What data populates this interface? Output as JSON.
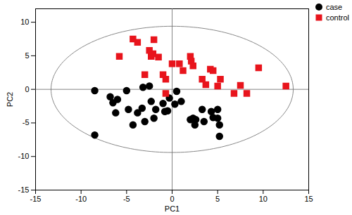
{
  "chart_data": {
    "type": "scatter",
    "x_label": "PC1",
    "y_label": "PC2",
    "xlim": [
      -15,
      15
    ],
    "xticks": [
      -15,
      -10,
      -5,
      0,
      5,
      10,
      15
    ],
    "ylim": [
      -15,
      12
    ],
    "yticks": [
      -15,
      -10,
      -5,
      0,
      5,
      10
    ],
    "grid": false,
    "legend": "top-right",
    "ellipse": {
      "center": [
        0,
        0
      ],
      "radii": [
        13.3,
        9.4
      ]
    },
    "series": [
      {
        "name": "case",
        "color": "#000000",
        "marker": "circle",
        "x": [
          -8.5,
          -8.5,
          -6.8,
          -6.5,
          -6.2,
          -6.0,
          -5.0,
          -4.8,
          -4.3,
          -3.8,
          -3.2,
          -3.3,
          -3.0,
          -2.5,
          -2.3,
          -2.0,
          -1.8,
          -1.0,
          -0.8,
          -0.5,
          -0.3,
          0.3,
          0.5,
          1.0,
          2.0,
          2.3,
          2.5,
          3.3,
          3.5,
          4.3,
          4.5,
          5.0,
          5.0,
          5.2,
          5.2,
          2.6
        ],
        "values": [
          -0.2,
          -6.8,
          -1.1,
          -2.0,
          -3.5,
          -1.5,
          -0.2,
          -3.0,
          -5.3,
          -3.5,
          0.3,
          -2.8,
          -4.8,
          0.5,
          -1.8,
          -4.3,
          -3.0,
          -2.1,
          -3.3,
          -3.2,
          -1.3,
          -2.2,
          -0.3,
          -1.8,
          -4.5,
          -4.3,
          -5.3,
          -3.0,
          -4.8,
          -3.3,
          -4.2,
          -3.0,
          -4.3,
          -5.3,
          -7.0,
          -4.5
        ]
      },
      {
        "name": "control",
        "color": "#e8141c",
        "marker": "square",
        "x": [
          -5.8,
          -4.3,
          -3.8,
          -3.0,
          -2.5,
          -2.3,
          -2.1,
          -2.0,
          -1.5,
          -1.0,
          -0.7,
          -0.7,
          0.0,
          0.8,
          1.2,
          2.0,
          2.1,
          2.3,
          3.3,
          3.7,
          4.2,
          4.5,
          5.0,
          5.3,
          6.8,
          7.5,
          8.2,
          9.5,
          12.5
        ],
        "values": [
          4.9,
          7.5,
          7.0,
          2.2,
          5.8,
          4.9,
          5.3,
          7.4,
          4.8,
          2.2,
          1.5,
          -0.6,
          3.8,
          3.8,
          2.8,
          4.9,
          4.2,
          3.5,
          1.5,
          0.7,
          3.0,
          2.8,
          0.5,
          1.5,
          -0.6,
          0.6,
          -0.6,
          3.2,
          0.5
        ]
      }
    ]
  }
}
